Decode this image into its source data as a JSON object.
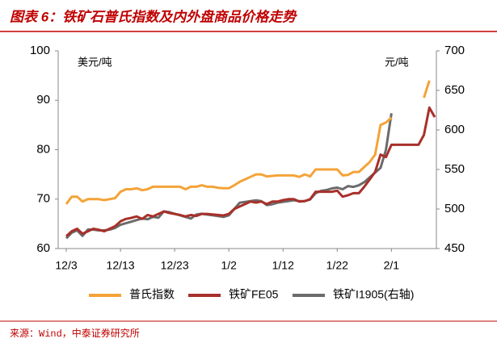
{
  "title": "图表 6：铁矿石普氏指数及内外盘商品价格走势",
  "source": "来源：Wind，中泰证券研究所",
  "chart_data": {
    "type": "line",
    "y_label": "美元/吨",
    "y2_label": "元/吨",
    "categories": [
      "12/3",
      null,
      null,
      null,
      null,
      null,
      null,
      null,
      null,
      null,
      "12/13",
      null,
      null,
      null,
      null,
      null,
      null,
      null,
      null,
      null,
      "12/23",
      null,
      null,
      null,
      null,
      null,
      null,
      null,
      null,
      null,
      "1/2",
      null,
      null,
      null,
      null,
      null,
      null,
      null,
      null,
      null,
      "1/12",
      null,
      null,
      null,
      null,
      null,
      null,
      null,
      null,
      null,
      "1/22",
      null,
      null,
      null,
      null,
      null,
      null,
      null,
      null,
      null,
      "2/1",
      null,
      null,
      null,
      null,
      null,
      null,
      null,
      null
    ],
    "series": [
      {
        "name": "普氏指数",
        "color": "#f4a338",
        "values": [
          69,
          70.5,
          70.5,
          69.5,
          70,
          70,
          70,
          69.8,
          70,
          70.2,
          71.5,
          72,
          72,
          72.2,
          71.8,
          72,
          72.5,
          72.5,
          72.5,
          72.5,
          72.5,
          72.5,
          72,
          72.5,
          72.5,
          72.8,
          72.5,
          72.5,
          72.3,
          72.2,
          72.2,
          72.8,
          73.5,
          74,
          74.5,
          75,
          75,
          74.6,
          74.7,
          74.8,
          74.8,
          74.8,
          74.8,
          74.5,
          75,
          74.6,
          76,
          76,
          76,
          76,
          76,
          74.8,
          74.9,
          75.5,
          75.5,
          76.5,
          77.5,
          79,
          85,
          85.5,
          86.5,
          null,
          null,
          null,
          null,
          null,
          90.5,
          94,
          null
        ]
      },
      {
        "name": "铁矿FE05",
        "color": "#a8302a",
        "values": [
          62.5,
          63.5,
          64,
          63,
          63.5,
          64,
          63.8,
          63.5,
          64,
          64.5,
          65.5,
          66,
          66.2,
          66.5,
          66,
          66.8,
          66.5,
          67,
          67.5,
          67.2,
          67,
          66.8,
          66.5,
          66.8,
          66.6,
          67,
          67,
          66.9,
          66.8,
          66.7,
          67,
          68,
          68.5,
          69,
          69.5,
          69.3,
          69.5,
          69,
          69.5,
          69.5,
          69.8,
          70,
          70,
          69.5,
          69.6,
          70,
          71.5,
          71.5,
          71.5,
          71.5,
          71.7,
          70.5,
          70.8,
          71.2,
          71.2,
          72.5,
          74,
          75.5,
          79,
          78.5,
          81,
          81,
          81,
          81,
          81,
          81,
          83,
          88.5,
          86.6
        ]
      },
      {
        "name": "铁矿I1905(右轴)",
        "color": "#6b6b6b",
        "axis": "y2",
        "values": [
          463,
          470,
          473,
          466,
          474,
          474,
          473,
          473,
          474,
          476,
          480,
          482,
          484,
          486,
          488,
          487,
          490,
          489,
          497,
          496,
          494,
          492,
          490,
          488,
          493,
          494,
          493,
          492,
          491,
          490,
          492,
          500,
          508,
          509,
          510,
          511,
          510,
          505,
          506,
          508,
          509,
          510,
          511,
          510,
          510,
          512,
          520,
          523,
          524,
          526,
          527,
          525,
          529,
          528,
          530,
          534,
          540,
          546,
          552,
          575,
          621,
          null,
          null,
          null,
          null,
          null,
          null,
          null,
          null
        ]
      }
    ],
    "ylim": [
      60,
      100
    ],
    "yticks": [
      60,
      70,
      80,
      90,
      100
    ],
    "y2lim": [
      450,
      700
    ],
    "y2ticks": [
      450,
      500,
      550,
      600,
      650,
      700
    ],
    "grid": false,
    "legend": "bottom"
  }
}
